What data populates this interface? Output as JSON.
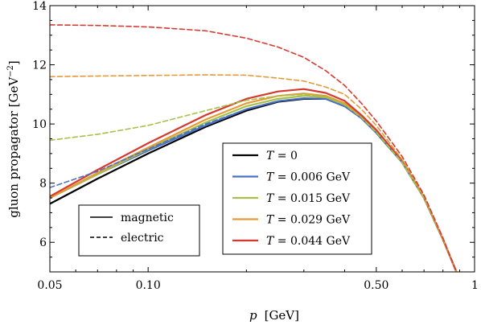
{
  "chart_data": {
    "type": "line",
    "title": "",
    "xlabel_symbol": "p",
    "xlabel_unit": "[GeV]",
    "ylabel": "gluon propagator [GeV",
    "ylabel_exponent": "−2",
    "ylabel_close": "]",
    "x_scale": "log",
    "xlim": [
      0.05,
      1.0
    ],
    "ylim": [
      5,
      14
    ],
    "x_ticks": [
      {
        "value": 0.05,
        "label": "0.05"
      },
      {
        "value": 0.1,
        "label": "0.10"
      },
      {
        "value": 0.5,
        "label": "0.50"
      },
      {
        "value": 1.0,
        "label": "1"
      }
    ],
    "y_ticks": [
      {
        "value": 6,
        "label": "6"
      },
      {
        "value": 8,
        "label": "8"
      },
      {
        "value": 10,
        "label": "10"
      },
      {
        "value": 12,
        "label": "12"
      },
      {
        "value": 14,
        "label": "14"
      }
    ],
    "legend_style": {
      "position": "bottom-left",
      "items": [
        {
          "label": "magnetic",
          "dash": "solid"
        },
        {
          "label": "electric",
          "dash": "dashed"
        }
      ]
    },
    "legend_temperature": {
      "position": "bottom-center",
      "items": [
        {
          "symbol": "T",
          "value": " = 0",
          "color": "#000000"
        },
        {
          "symbol": "T",
          "value": " = 0.006 GeV",
          "color": "#4a72c4"
        },
        {
          "symbol": "T",
          "value": " = 0.015 GeV",
          "color": "#a6c04a"
        },
        {
          "symbol": "T",
          "value": " = 0.029 GeV",
          "color": "#e59a38"
        },
        {
          "symbol": "T",
          "value": " = 0.044 GeV",
          "color": "#d63a2f"
        }
      ]
    },
    "series": [
      {
        "temperature": "T = 0",
        "style": "magnetic",
        "color": "#000000",
        "points": [
          [
            0.05,
            7.3
          ],
          [
            0.07,
            8.15
          ],
          [
            0.1,
            9.0
          ],
          [
            0.15,
            9.9
          ],
          [
            0.2,
            10.45
          ],
          [
            0.25,
            10.75
          ],
          [
            0.3,
            10.85
          ],
          [
            0.35,
            10.85
          ],
          [
            0.4,
            10.6
          ],
          [
            0.45,
            10.2
          ],
          [
            0.5,
            9.7
          ],
          [
            0.6,
            8.7
          ],
          [
            0.7,
            7.5
          ],
          [
            0.8,
            6.1
          ],
          [
            0.88,
            5.0
          ]
        ]
      },
      {
        "temperature": "T = 0.006 GeV",
        "style": "magnetic",
        "color": "#4a72c4",
        "points": [
          [
            0.05,
            7.5
          ],
          [
            0.07,
            8.3
          ],
          [
            0.1,
            9.1
          ],
          [
            0.15,
            9.95
          ],
          [
            0.2,
            10.5
          ],
          [
            0.25,
            10.77
          ],
          [
            0.3,
            10.87
          ],
          [
            0.35,
            10.85
          ],
          [
            0.4,
            10.6
          ],
          [
            0.45,
            10.2
          ],
          [
            0.5,
            9.7
          ],
          [
            0.6,
            8.7
          ],
          [
            0.7,
            7.5
          ],
          [
            0.8,
            6.1
          ],
          [
            0.88,
            5.0
          ]
        ]
      },
      {
        "temperature": "T = 0.015 GeV",
        "style": "magnetic",
        "color": "#a6c04a",
        "points": [
          [
            0.05,
            7.5
          ],
          [
            0.07,
            8.3
          ],
          [
            0.1,
            9.15
          ],
          [
            0.15,
            10.05
          ],
          [
            0.2,
            10.6
          ],
          [
            0.25,
            10.85
          ],
          [
            0.3,
            10.95
          ],
          [
            0.35,
            10.9
          ],
          [
            0.4,
            10.65
          ],
          [
            0.45,
            10.22
          ],
          [
            0.5,
            9.72
          ],
          [
            0.6,
            8.7
          ],
          [
            0.7,
            7.5
          ],
          [
            0.8,
            6.1
          ],
          [
            0.88,
            5.0
          ]
        ]
      },
      {
        "temperature": "T = 0.029 GeV",
        "style": "magnetic",
        "color": "#e59a38",
        "points": [
          [
            0.05,
            7.5
          ],
          [
            0.07,
            8.35
          ],
          [
            0.1,
            9.2
          ],
          [
            0.15,
            10.15
          ],
          [
            0.2,
            10.7
          ],
          [
            0.25,
            10.95
          ],
          [
            0.3,
            11.03
          ],
          [
            0.35,
            10.95
          ],
          [
            0.4,
            10.7
          ],
          [
            0.45,
            10.25
          ],
          [
            0.5,
            9.75
          ],
          [
            0.6,
            8.72
          ],
          [
            0.7,
            7.5
          ],
          [
            0.8,
            6.1
          ],
          [
            0.88,
            5.0
          ]
        ]
      },
      {
        "temperature": "T = 0.044 GeV",
        "style": "magnetic",
        "color": "#d63a2f",
        "points": [
          [
            0.05,
            7.55
          ],
          [
            0.07,
            8.45
          ],
          [
            0.1,
            9.35
          ],
          [
            0.15,
            10.3
          ],
          [
            0.2,
            10.85
          ],
          [
            0.25,
            11.1
          ],
          [
            0.3,
            11.18
          ],
          [
            0.35,
            11.05
          ],
          [
            0.4,
            10.78
          ],
          [
            0.45,
            10.3
          ],
          [
            0.5,
            9.8
          ],
          [
            0.6,
            8.75
          ],
          [
            0.7,
            7.52
          ],
          [
            0.8,
            6.1
          ],
          [
            0.88,
            5.0
          ]
        ]
      },
      {
        "temperature": "T = 0.006 GeV",
        "style": "electric",
        "color": "#4a72c4",
        "points": [
          [
            0.05,
            7.85
          ],
          [
            0.07,
            8.4
          ],
          [
            0.1,
            9.15
          ],
          [
            0.15,
            10.0
          ],
          [
            0.2,
            10.5
          ],
          [
            0.25,
            10.78
          ],
          [
            0.3,
            10.87
          ],
          [
            0.35,
            10.85
          ],
          [
            0.4,
            10.6
          ],
          [
            0.45,
            10.2
          ],
          [
            0.5,
            9.7
          ],
          [
            0.6,
            8.7
          ],
          [
            0.7,
            7.5
          ],
          [
            0.8,
            6.1
          ],
          [
            0.88,
            5.0
          ]
        ]
      },
      {
        "temperature": "T = 0.015 GeV",
        "style": "electric",
        "color": "#a6c04a",
        "points": [
          [
            0.05,
            9.45
          ],
          [
            0.07,
            9.65
          ],
          [
            0.1,
            9.95
          ],
          [
            0.15,
            10.45
          ],
          [
            0.2,
            10.8
          ],
          [
            0.25,
            10.95
          ],
          [
            0.3,
            11.0
          ],
          [
            0.35,
            10.92
          ],
          [
            0.4,
            10.65
          ],
          [
            0.45,
            10.22
          ],
          [
            0.5,
            9.72
          ],
          [
            0.6,
            8.7
          ],
          [
            0.7,
            7.5
          ],
          [
            0.8,
            6.1
          ],
          [
            0.88,
            5.0
          ]
        ]
      },
      {
        "temperature": "T = 0.029 GeV",
        "style": "electric",
        "color": "#e59a38",
        "points": [
          [
            0.05,
            11.6
          ],
          [
            0.07,
            11.62
          ],
          [
            0.1,
            11.64
          ],
          [
            0.15,
            11.66
          ],
          [
            0.2,
            11.65
          ],
          [
            0.25,
            11.55
          ],
          [
            0.3,
            11.45
          ],
          [
            0.35,
            11.25
          ],
          [
            0.4,
            11.0
          ],
          [
            0.45,
            10.5
          ],
          [
            0.5,
            9.95
          ],
          [
            0.6,
            8.8
          ],
          [
            0.7,
            7.55
          ],
          [
            0.8,
            6.12
          ],
          [
            0.88,
            5.0
          ]
        ]
      },
      {
        "temperature": "T = 0.044 GeV",
        "style": "electric",
        "color": "#d63a2f",
        "points": [
          [
            0.05,
            13.35
          ],
          [
            0.07,
            13.33
          ],
          [
            0.1,
            13.28
          ],
          [
            0.15,
            13.15
          ],
          [
            0.2,
            12.9
          ],
          [
            0.25,
            12.6
          ],
          [
            0.3,
            12.25
          ],
          [
            0.35,
            11.8
          ],
          [
            0.4,
            11.3
          ],
          [
            0.45,
            10.7
          ],
          [
            0.5,
            10.1
          ],
          [
            0.6,
            8.9
          ],
          [
            0.7,
            7.6
          ],
          [
            0.8,
            6.15
          ],
          [
            0.88,
            5.0
          ]
        ]
      }
    ]
  }
}
